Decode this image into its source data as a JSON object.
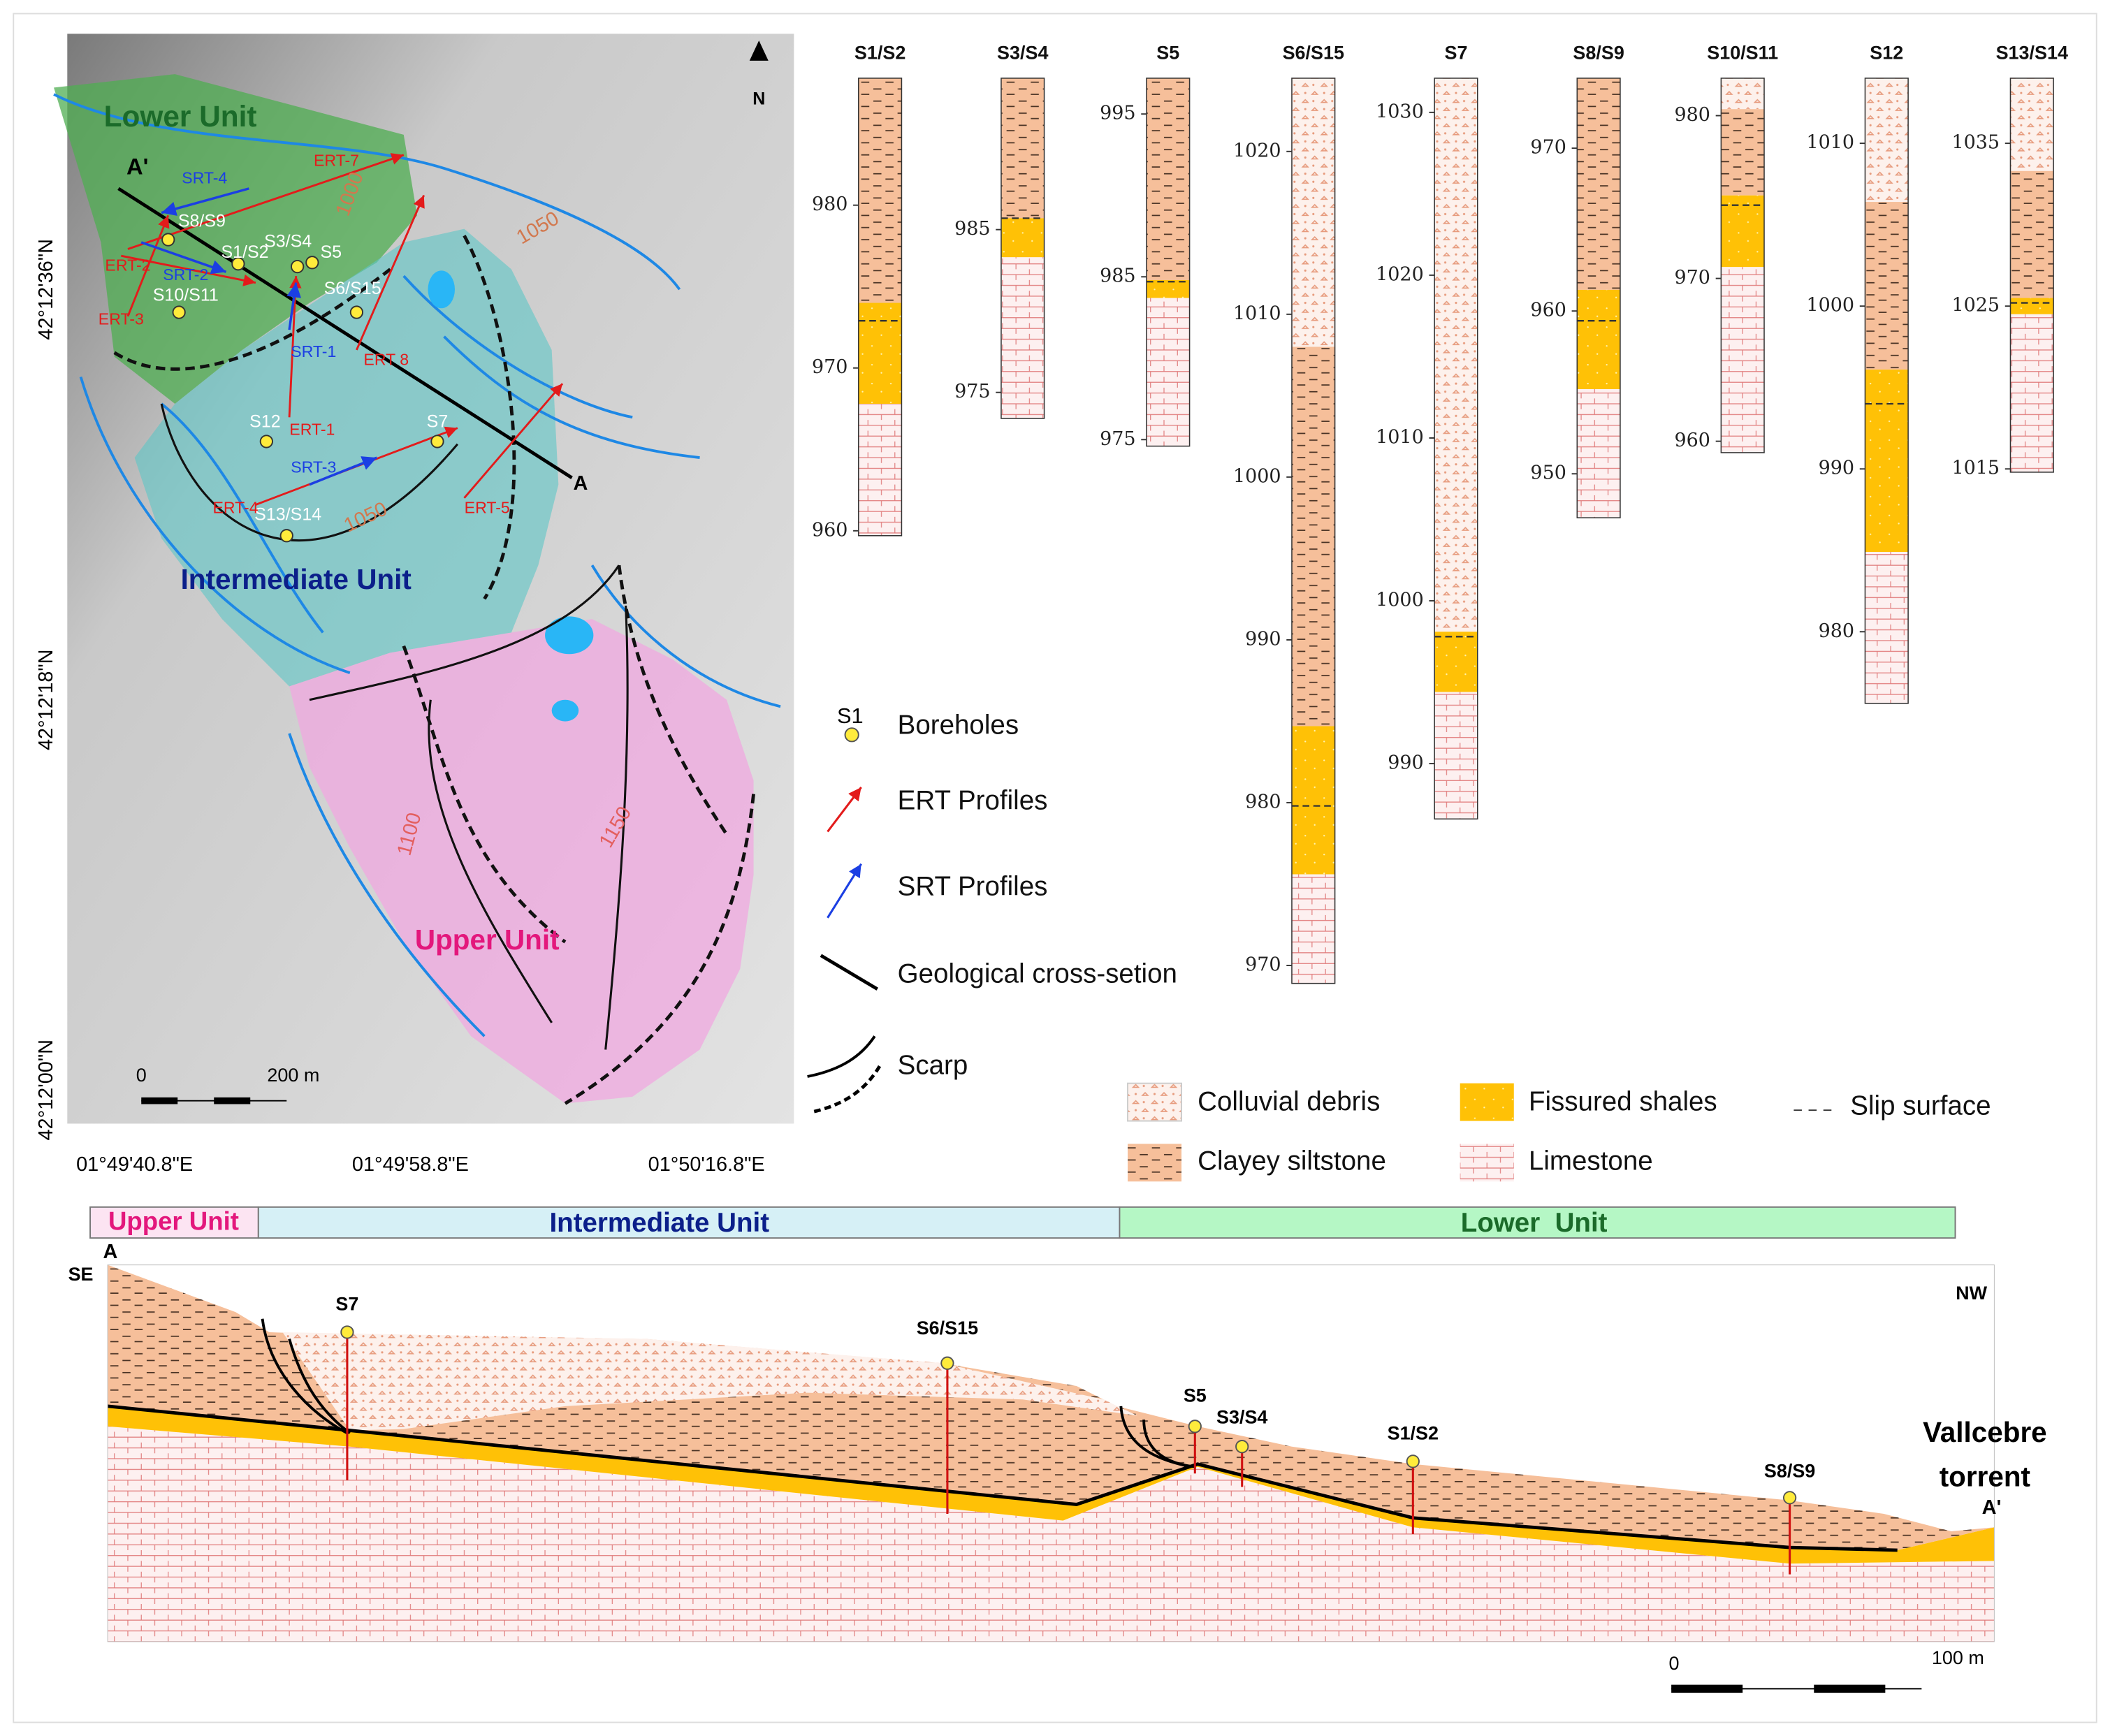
{
  "map": {
    "north": "N",
    "units": [
      "Lower Unit",
      "Intermediate Unit",
      "Upper Unit"
    ],
    "section_ends": [
      "A'",
      "A"
    ],
    "contours": [
      "1000",
      "1050",
      "1050",
      "1100",
      "1150"
    ],
    "boreholes": [
      "S8/S9",
      "S1/S2",
      "S3/S4",
      "S5",
      "S6/S15",
      "S10/S11",
      "S12",
      "S7",
      "S13/S14"
    ],
    "ert": [
      "ERT-7",
      "ERT-2",
      "ERT-3",
      "ERT 8",
      "ERT-1",
      "ERT-4",
      "ERT-5"
    ],
    "srt": [
      "SRT-4",
      "SRT-2",
      "SRT-1",
      "SRT-3"
    ],
    "latitudes": [
      "42°12'36\"N",
      "42°12'18\"N",
      "42°12'00\"N"
    ],
    "longitudes": [
      "01°49'40.8\"E",
      "01°49'58.8\"E",
      "01°50'16.8\"E"
    ],
    "scale": [
      "0",
      "200 m"
    ]
  },
  "map_legend": {
    "borehole_symbol": "S1",
    "items": [
      "Boreholes",
      "ERT Profiles",
      "SRT Profiles",
      "Geological cross-setion",
      "Scarp"
    ]
  },
  "boreholes": [
    {
      "name": "S1/S2",
      "top": 987.8,
      "ticks": [
        980,
        970,
        960
      ],
      "slip": 972.9,
      "layers": [
        {
          "material": "Clayey siltstone",
          "bottom": 974.0
        },
        {
          "material": "Fissured shales",
          "bottom": 967.8
        },
        {
          "material": "Limestone",
          "bottom": 959.7
        }
      ]
    },
    {
      "name": "S3/S4",
      "top": 994.3,
      "ticks": [
        985,
        975
      ],
      "slip": 985.7,
      "layers": [
        {
          "material": "Clayey siltstone",
          "bottom": 985.7
        },
        {
          "material": "Fissured shales",
          "bottom": 983.3
        },
        {
          "material": "Limestone",
          "bottom": 973.4
        }
      ]
    },
    {
      "name": "S5",
      "top": 997.2,
      "ticks": [
        995,
        985,
        975
      ],
      "slip": 984.7,
      "layers": [
        {
          "material": "Clayey siltstone",
          "bottom": 984.8
        },
        {
          "material": "Fissured shales",
          "bottom": 983.7
        },
        {
          "material": "Limestone",
          "bottom": 974.6
        }
      ]
    },
    {
      "name": "S6/S15",
      "top": 1024.5,
      "ticks": [
        1020,
        1010,
        1000,
        990,
        980,
        970
      ],
      "slip": 979.8,
      "layers": [
        {
          "material": "Colluvial debris",
          "bottom": 1008.0
        },
        {
          "material": "Clayey siltstone",
          "bottom": 984.7
        },
        {
          "material": "Fissured shales",
          "bottom": 975.6
        },
        {
          "material": "Limestone",
          "bottom": 968.9
        }
      ]
    },
    {
      "name": "S7",
      "top": 1032.1,
      "ticks": [
        1030,
        1020,
        1010,
        1000,
        990
      ],
      "slip": 997.8,
      "layers": [
        {
          "material": "Colluvial debris",
          "bottom": 998.1
        },
        {
          "material": "Fissured shales",
          "bottom": 994.4
        },
        {
          "material": "Limestone",
          "bottom": 986.6
        }
      ]
    },
    {
      "name": "S8/S9",
      "top": 974.3,
      "ticks": [
        970,
        960,
        950
      ],
      "slip": 959.4,
      "layers": [
        {
          "material": "Clayey siltstone",
          "bottom": 961.3
        },
        {
          "material": "Fissured shales",
          "bottom": 955.2
        },
        {
          "material": "Limestone",
          "bottom": 947.3
        }
      ]
    },
    {
      "name": "S10/S11",
      "top": 982.3,
      "ticks": [
        980,
        970,
        960
      ],
      "slip": 974.5,
      "layers": [
        {
          "material": "Colluvial debris",
          "bottom": 980.4
        },
        {
          "material": "Clayey siltstone",
          "bottom": 975.1
        },
        {
          "material": "Fissured shales",
          "bottom": 970.7
        },
        {
          "material": "Limestone",
          "bottom": 959.3
        }
      ]
    },
    {
      "name": "S12",
      "top": 1014.0,
      "ticks": [
        1010,
        1000,
        990,
        980
      ],
      "slip": 994.0,
      "layers": [
        {
          "material": "Colluvial debris",
          "bottom": 1006.4
        },
        {
          "material": "Clayey siltstone",
          "bottom": 996.1
        },
        {
          "material": "Fissured shales",
          "bottom": 984.9
        },
        {
          "material": "Limestone",
          "bottom": 975.6
        }
      ]
    },
    {
      "name": "S13/S14",
      "top": 1039.0,
      "ticks": [
        1035,
        1025,
        1015
      ],
      "slip": 1025.2,
      "layers": [
        {
          "material": "Colluvial debris",
          "bottom": 1033.3
        },
        {
          "material": "Clayey siltstone",
          "bottom": 1025.5
        },
        {
          "material": "Fissured shales",
          "bottom": 1024.5
        },
        {
          "material": "Limestone",
          "bottom": 1014.8
        }
      ]
    }
  ],
  "lithology_legend": {
    "items": [
      "Colluvial debris",
      "Clayey siltstone",
      "Fissured shales",
      "Limestone"
    ],
    "slip": "Slip surface"
  },
  "cross_section": {
    "units": [
      "Upper Unit",
      "Intermediate Unit",
      "Lower  Unit"
    ],
    "directions": [
      "SE",
      "NW"
    ],
    "ends": [
      "A",
      "A'"
    ],
    "boreholes": [
      "S7",
      "S6/S15",
      "S5",
      "S3/S4",
      "S1/S2",
      "S8/S9"
    ],
    "river": [
      "Vallcebre",
      "torrent"
    ],
    "scale": [
      "0",
      "100 m"
    ]
  }
}
